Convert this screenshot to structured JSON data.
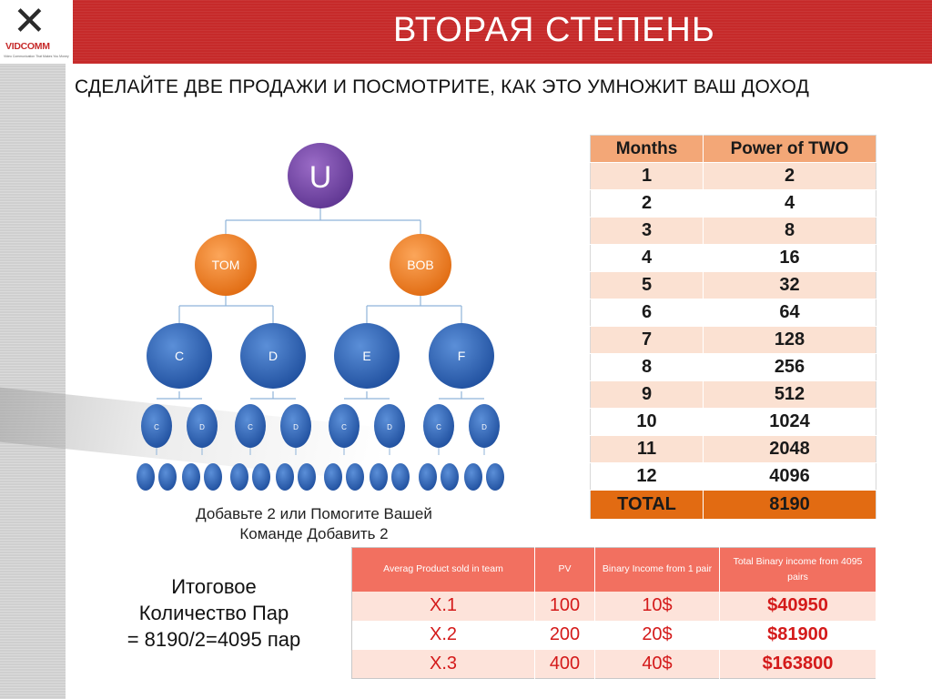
{
  "header": {
    "title": "ВТОРАЯ СТЕПЕНЬ",
    "logo_text": "VIDCOMM",
    "logo_tagline": "Video Communication That Makes You Money",
    "brand_color": "#c62a2a"
  },
  "subtitle": "СДЕЛАЙТЕ ДВЕ ПРОДАЖИ И ПОСМОТРИТЕ, КАК ЭТО УМНОЖИТ ВАШ ДОХОД",
  "tree": {
    "root": "U",
    "level1": [
      "TOM",
      "BOB"
    ],
    "level2": [
      "C",
      "D",
      "E",
      "F"
    ],
    "level3": [
      "C",
      "D",
      "C",
      "D",
      "C",
      "D",
      "C",
      "D"
    ]
  },
  "caption": {
    "line1": "Добавьте 2 или Помогите Вашей",
    "line2": "Команде Добавить 2"
  },
  "pairs_text": {
    "line1": "Итоговое",
    "line2": "Количество Пар",
    "line3": "= 8190/2=4095 пар"
  },
  "powers_table": {
    "headers": [
      "Months",
      "Power of TWO"
    ],
    "rows": [
      [
        "1",
        "2"
      ],
      [
        "2",
        "4"
      ],
      [
        "3",
        "8"
      ],
      [
        "4",
        "16"
      ],
      [
        "5",
        "32"
      ],
      [
        "6",
        "64"
      ],
      [
        "7",
        "128"
      ],
      [
        "8",
        "256"
      ],
      [
        "9",
        "512"
      ],
      [
        "10",
        "1024"
      ],
      [
        "11",
        "2048"
      ],
      [
        "12",
        "4096"
      ]
    ],
    "total": [
      "TOTAL",
      "8190"
    ]
  },
  "income_table": {
    "headers": [
      "Averag Product sold in team",
      "PV",
      "Binary Income  from 1 pair",
      "Total Binary income from 4095 pairs"
    ],
    "rows": [
      [
        "X.1",
        "100",
        "10$",
        "$40950"
      ],
      [
        "X.2",
        "200",
        "20$",
        "$81900"
      ],
      [
        "X.3",
        "400",
        "40$",
        "$163800"
      ]
    ]
  }
}
